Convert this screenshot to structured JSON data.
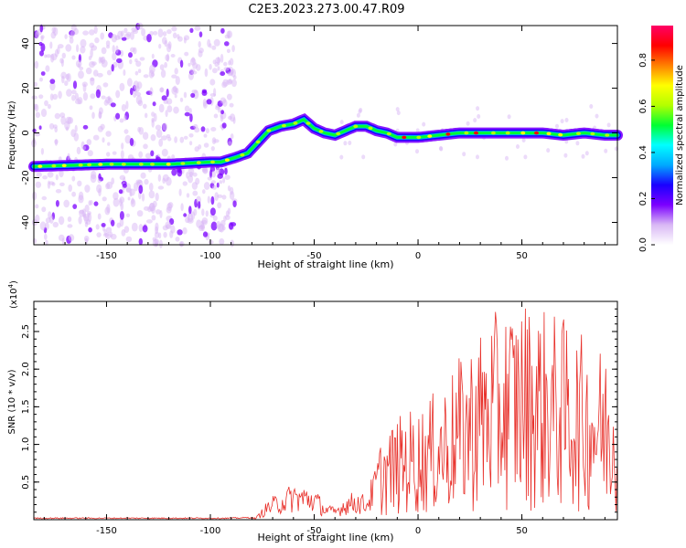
{
  "title": "C2E3.2023.273.00.47.R09",
  "chart_data": [
    {
      "type": "heatmap",
      "name": "spectrogram",
      "xlabel": "Height of straight line (km)",
      "ylabel": "Frequency (Hz)",
      "xlim": [
        -185,
        96
      ],
      "ylim": [
        -50,
        48
      ],
      "xticks": [
        -150,
        -100,
        -50,
        0,
        50
      ],
      "yticks": [
        -40,
        -20,
        0,
        20,
        40
      ],
      "colorbar": {
        "label": "Normalized spectral amplitude",
        "range": [
          0.0,
          0.95
        ],
        "ticks": [
          "0.0",
          "0.2",
          "0.4",
          "0.6",
          "0.8"
        ],
        "colormap": [
          "#ffffff",
          "#d9b8f5",
          "#7b00ff",
          "#1a00ff",
          "#00aaff",
          "#00ffff",
          "#00ff33",
          "#b3ff00",
          "#ffff00",
          "#ff8000",
          "#ff0000",
          "#ff0066"
        ]
      },
      "ridge": {
        "x": [
          -185,
          -150,
          -120,
          -100,
          -95,
          -88,
          -82,
          -78,
          -72,
          -66,
          -60,
          -55,
          -50,
          -45,
          -40,
          -35,
          -30,
          -25,
          -20,
          -15,
          -10,
          0,
          10,
          20,
          30,
          40,
          50,
          60,
          70,
          80,
          90,
          96
        ],
        "y": [
          -15,
          -14,
          -14,
          -13,
          -13,
          -11,
          -9,
          -5,
          1,
          3,
          4,
          6,
          2,
          0,
          -1,
          1,
          3,
          3,
          1,
          0,
          -2,
          -2,
          -1,
          0,
          0,
          0,
          0,
          0,
          -1,
          0,
          -1,
          -1
        ]
      }
    },
    {
      "type": "line",
      "name": "snr",
      "xlabel": "Height of straight line (km)",
      "ylabel": "SNR (10 * v/v)",
      "yunit_label": "(x10",
      "yunit_exp": "4",
      "xlim": [
        -185,
        96
      ],
      "ylim": [
        0,
        2.9
      ],
      "xticks": [
        -150,
        -100,
        -50,
        0,
        50
      ],
      "yticks": [
        "0.5",
        "1.0",
        "1.5",
        "2.0",
        "2.5"
      ],
      "color": "#e8302a",
      "envelope": {
        "x": [
          -185,
          -120,
          -90,
          -78,
          -72,
          -60,
          -50,
          -45,
          -40,
          -35,
          -30,
          -25,
          -20,
          -15,
          -10,
          -5,
          0,
          10,
          20,
          30,
          40,
          50,
          60,
          70,
          80,
          90,
          96
        ],
        "y": [
          0.02,
          0.02,
          0.02,
          0.03,
          0.25,
          0.45,
          0.4,
          0.2,
          0.15,
          0.3,
          0.35,
          0.3,
          0.7,
          0.9,
          1.0,
          1.1,
          1.1,
          1.3,
          1.6,
          1.9,
          2.1,
          2.2,
          2.1,
          2.0,
          1.8,
          1.7,
          1.6
        ]
      }
    }
  ]
}
